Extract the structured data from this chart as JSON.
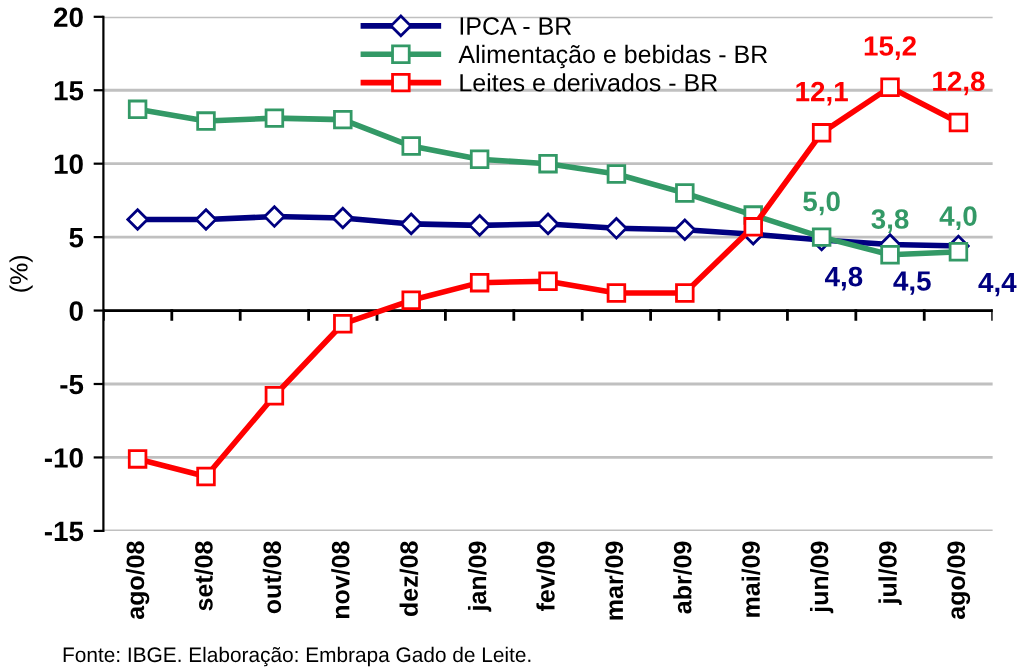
{
  "chart_data": {
    "type": "line",
    "ylabel": "(%)",
    "categories": [
      "ago/08",
      "set/08",
      "out/08",
      "nov/08",
      "dez/08",
      "jan/09",
      "fev/09",
      "mar/09",
      "abr/09",
      "mai/09",
      "jun/09",
      "jul/09",
      "ago/09"
    ],
    "series": [
      {
        "name": "IPCA - BR",
        "color": "#000080",
        "marker": "diamond",
        "values": [
          6.2,
          6.2,
          6.4,
          6.3,
          5.9,
          5.8,
          5.9,
          5.6,
          5.5,
          5.2,
          4.8,
          4.5,
          4.4
        ],
        "value_labels": [
          null,
          null,
          null,
          null,
          null,
          null,
          null,
          null,
          null,
          null,
          "4,8",
          "4,5",
          "4,4"
        ]
      },
      {
        "name": "Alimentação e bebidas - BR",
        "color": "#339966",
        "marker": "square",
        "values": [
          13.7,
          12.9,
          13.1,
          13.0,
          11.2,
          10.3,
          10.0,
          9.3,
          8.0,
          6.5,
          5.0,
          3.8,
          4.0
        ],
        "value_labels": [
          null,
          null,
          null,
          null,
          null,
          null,
          null,
          null,
          null,
          null,
          "5,0",
          "3,8",
          "4,0"
        ]
      },
      {
        "name": "Leites e derivados - BR",
        "color": "#ff0000",
        "marker": "square",
        "values": [
          -10.1,
          -11.3,
          -5.8,
          -0.9,
          0.7,
          1.9,
          2.0,
          1.2,
          1.2,
          5.7,
          12.1,
          15.2,
          12.8
        ],
        "value_labels": [
          null,
          null,
          null,
          null,
          null,
          null,
          null,
          null,
          null,
          null,
          "12,1",
          "15,2",
          "12,8"
        ]
      }
    ],
    "ylim": [
      -15,
      20
    ],
    "yticks": [
      -15,
      -10,
      -5,
      0,
      5,
      10,
      15,
      20
    ],
    "grid": "y",
    "legend": "top",
    "line_style": "solid",
    "annotations": [
      "Fonte: IBGE. Elaboração: Embrapa Gado de Leite."
    ]
  }
}
